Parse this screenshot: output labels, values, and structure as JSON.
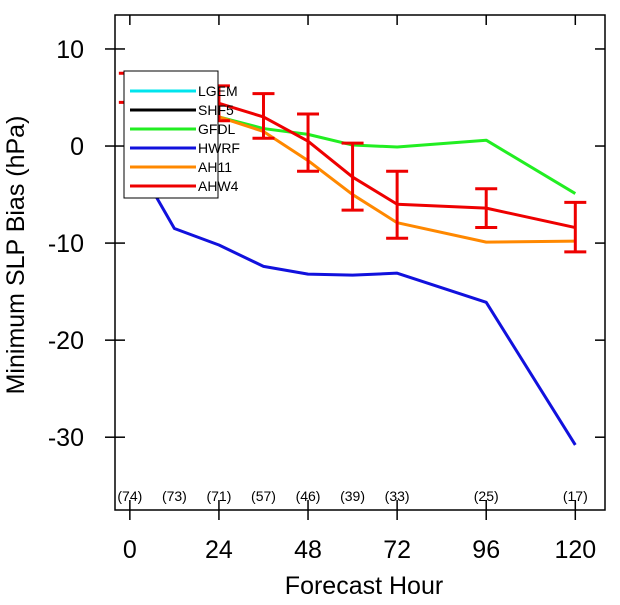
{
  "chart_data": {
    "type": "line",
    "title": "",
    "xlabel": "Forecast Hour",
    "ylabel": "Minimum SLP Bias (hPa)",
    "xlim": [
      -4,
      128
    ],
    "ylim": [
      -37.5,
      13.5
    ],
    "x_ticks": [
      0,
      24,
      48,
      72,
      96,
      120
    ],
    "y_ticks": [
      10,
      0,
      -10,
      -20,
      -30
    ],
    "grid": false,
    "legend_position": "top-left",
    "x": [
      0,
      12,
      24,
      36,
      48,
      60,
      72,
      96,
      120
    ],
    "series": [
      {
        "name": "LGEM",
        "color": "#00e5ee",
        "values": [
          5.3,
          5.6,
          null,
          null,
          null,
          null,
          null,
          null,
          null
        ]
      },
      {
        "name": "SHF5",
        "color": "#000000",
        "values": [
          null,
          null,
          null,
          null,
          null,
          null,
          null,
          null,
          null
        ]
      },
      {
        "name": "GFDL",
        "color": "#22ee22",
        "values": [
          3.8,
          2.8,
          3.0,
          1.8,
          1.2,
          0.1,
          -0.1,
          0.6,
          -4.9
        ]
      },
      {
        "name": "HWRF",
        "color": "#1111dd",
        "values": [
          -0.5,
          -8.5,
          -10.2,
          -12.4,
          -13.2,
          -13.3,
          -13.1,
          -16.1,
          -30.8
        ]
      },
      {
        "name": "AH11",
        "color": "#ff8800",
        "values": [
          5.0,
          4.2,
          3.0,
          1.5,
          -1.5,
          -5.0,
          -7.9,
          -9.9,
          -9.8
        ]
      },
      {
        "name": "AHW4",
        "color": "#ee0000",
        "values": [
          6.0,
          5.5,
          4.4,
          3.0,
          0.5,
          -3.2,
          -6.0,
          -6.4,
          -8.4
        ]
      }
    ],
    "error_bars": {
      "series": "AHW4",
      "color": "#ee0000",
      "x": [
        0,
        12,
        24,
        36,
        48,
        60,
        72,
        96,
        120
      ],
      "low": [
        4.5,
        3.8,
        2.6,
        0.8,
        -2.6,
        -6.6,
        -9.5,
        -8.4,
        -10.9
      ],
      "high": [
        7.5,
        7.2,
        6.2,
        5.4,
        3.3,
        0.3,
        -2.6,
        -4.4,
        -5.8
      ]
    },
    "sample_counts": {
      "x": [
        0,
        12,
        24,
        36,
        48,
        60,
        72,
        96,
        120
      ],
      "labels": [
        "(74)",
        "(73)",
        "(71)",
        "(57)",
        "(46)",
        "(39)",
        "(33)",
        "(25)",
        "(17)"
      ]
    }
  }
}
